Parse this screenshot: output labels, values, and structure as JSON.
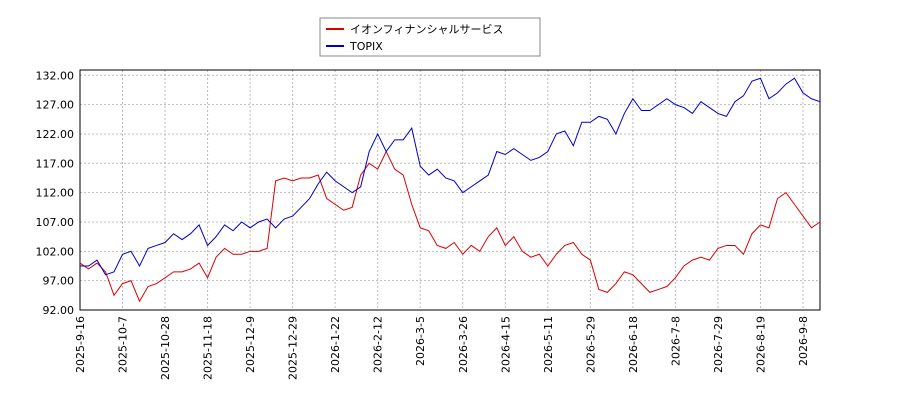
{
  "chart_data": {
    "type": "line",
    "categories": [
      "2025-9-16",
      null,
      null,
      null,
      null,
      "2025-10-7",
      null,
      null,
      null,
      null,
      "2025-10-28",
      null,
      null,
      null,
      null,
      "2025-11-18",
      null,
      null,
      null,
      null,
      "2025-12-9",
      null,
      null,
      null,
      null,
      "2025-12-29",
      null,
      null,
      null,
      null,
      "2026-1-22",
      null,
      null,
      null,
      null,
      "2026-2-12",
      null,
      null,
      null,
      null,
      "2026-3-5",
      null,
      null,
      null,
      null,
      "2026-3-26",
      null,
      null,
      null,
      null,
      "2026-4-15",
      null,
      null,
      null,
      null,
      "2026-5-11",
      null,
      null,
      null,
      null,
      "2026-5-29",
      null,
      null,
      null,
      null,
      "2026-6-18",
      null,
      null,
      null,
      null,
      "2026-7-8",
      null,
      null,
      null,
      null,
      "2026-7-29",
      null,
      null,
      null,
      null,
      "2026-8-19",
      null,
      null,
      null,
      null,
      "2026-9-8",
      null,
      null
    ],
    "series": [
      {
        "name": "イオンフィナンシャルサービス",
        "color": "#dd0000",
        "values": [
          100,
          99,
          100,
          98.5,
          94.5,
          96.5,
          97,
          93.5,
          96,
          96.5,
          97.5,
          98.5,
          98.5,
          99,
          100,
          97.5,
          101,
          102.5,
          101.5,
          101.5,
          102,
          102,
          102.5,
          114,
          114.5,
          114,
          114.5,
          114.5,
          115,
          111,
          110,
          109,
          109.5,
          115,
          117,
          116,
          119,
          116,
          115,
          110,
          106,
          105.5,
          103,
          102.5,
          103.5,
          101.5,
          103,
          102,
          104.5,
          106,
          103,
          104.5,
          102,
          101,
          101.5,
          99.5,
          101.5,
          103,
          103.5,
          101.5,
          100.5,
          95.5,
          95,
          96.5,
          98.5,
          98,
          96.5,
          95,
          95.5,
          96,
          97.5,
          99.5,
          100.5,
          101,
          100.5,
          102.5,
          103,
          103,
          101.5,
          105,
          106.5,
          106,
          111,
          112,
          110,
          108,
          106,
          107
        ]
      },
      {
        "name": "TOPIX",
        "color": "#0000cc",
        "values": [
          99.5,
          99.5,
          100.5,
          98,
          98.5,
          101.5,
          102,
          99.5,
          102.5,
          103,
          103.5,
          105,
          104,
          105,
          106.5,
          103,
          104.5,
          106.5,
          105.5,
          107,
          106,
          107,
          107.5,
          106,
          107.5,
          108,
          109.5,
          111,
          113.5,
          115.5,
          114,
          113,
          112,
          113,
          119,
          122,
          119,
          121,
          121,
          123,
          116.5,
          115,
          116,
          114.5,
          114,
          112,
          113,
          114,
          115,
          119,
          118.5,
          119.5,
          118.5,
          117.5,
          118,
          119,
          122,
          122.5,
          120,
          124,
          124,
          125,
          124.5,
          122,
          125.5,
          128,
          126,
          126,
          127,
          128,
          127,
          126.5,
          125.5,
          127.5,
          126.5,
          125.5,
          125,
          127.5,
          128.5,
          131,
          131.5,
          128,
          129,
          130.5,
          131.5,
          129,
          128,
          127.5
        ]
      }
    ],
    "ylim": [
      92,
      132.9
    ],
    "yticks": [
      {
        "value": 92,
        "label": "92.00"
      },
      {
        "value": 97,
        "label": "97.00"
      },
      {
        "value": 102,
        "label": "102.00"
      },
      {
        "value": 107,
        "label": "107.00"
      },
      {
        "value": 112,
        "label": "112.00"
      },
      {
        "value": 117,
        "label": "117.00"
      },
      {
        "value": 122,
        "label": "122.00"
      },
      {
        "value": 127,
        "label": "127.00"
      },
      {
        "value": 132,
        "label": "132.00"
      }
    ],
    "grid": true
  }
}
